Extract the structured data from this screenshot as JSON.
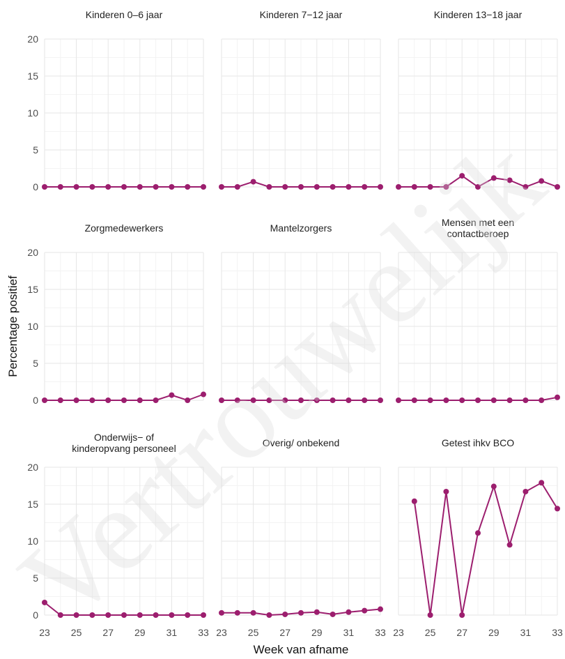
{
  "chart_data": {
    "type": "line",
    "facets": [
      {
        "title_lines": [
          "Kinderen 0–6 jaar"
        ],
        "x": [
          23,
          24,
          25,
          26,
          27,
          28,
          29,
          30,
          31,
          32,
          33
        ],
        "y": [
          0,
          0,
          0,
          0,
          0,
          0,
          0,
          0,
          0,
          0,
          0
        ]
      },
      {
        "title_lines": [
          "Kinderen 7−12 jaar"
        ],
        "x": [
          23,
          24,
          25,
          26,
          27,
          28,
          29,
          30,
          31,
          32,
          33
        ],
        "y": [
          0,
          0,
          0.7,
          0,
          0,
          0,
          0,
          0,
          0,
          0,
          0
        ]
      },
      {
        "title_lines": [
          "Kinderen 13−18 jaar"
        ],
        "x": [
          23,
          24,
          25,
          26,
          27,
          28,
          29,
          30,
          31,
          32,
          33
        ],
        "y": [
          0,
          0,
          0,
          0,
          1.5,
          0,
          1.2,
          0.9,
          0,
          0.8,
          0
        ]
      },
      {
        "title_lines": [
          "Zorgmedewerkers"
        ],
        "x": [
          23,
          24,
          25,
          26,
          27,
          28,
          29,
          30,
          31,
          32,
          33
        ],
        "y": [
          0,
          0,
          0,
          0,
          0,
          0,
          0,
          0,
          0.7,
          0,
          0.8
        ]
      },
      {
        "title_lines": [
          "Mantelzorgers"
        ],
        "x": [
          23,
          24,
          25,
          26,
          27,
          28,
          29,
          30,
          31,
          32,
          33
        ],
        "y": [
          0,
          0,
          0,
          0,
          0,
          0,
          0,
          0,
          0,
          0,
          0
        ]
      },
      {
        "title_lines": [
          "Mensen met een",
          "contactberoep"
        ],
        "x": [
          23,
          24,
          25,
          26,
          27,
          28,
          29,
          30,
          31,
          32,
          33
        ],
        "y": [
          0,
          0,
          0,
          0,
          0,
          0,
          0,
          0,
          0,
          0,
          0.4
        ]
      },
      {
        "title_lines": [
          "Onderwijs− of",
          "kinderopvang personeel"
        ],
        "x": [
          23,
          24,
          25,
          26,
          27,
          28,
          29,
          30,
          31,
          32,
          33
        ],
        "y": [
          1.7,
          0,
          0,
          0,
          0,
          0,
          0,
          0,
          0,
          0,
          0
        ]
      },
      {
        "title_lines": [
          "Overig/ onbekend"
        ],
        "x": [
          23,
          24,
          25,
          26,
          27,
          28,
          29,
          30,
          31,
          32,
          33
        ],
        "y": [
          0.3,
          0.3,
          0.3,
          0,
          0.1,
          0.3,
          0.4,
          0.1,
          0.4,
          0.6,
          0.8
        ]
      },
      {
        "title_lines": [
          "Getest ihkv BCO"
        ],
        "x": [
          24,
          25,
          26,
          27,
          28,
          29,
          30,
          31,
          32,
          33
        ],
        "y": [
          15.4,
          0,
          16.7,
          0,
          11.1,
          17.4,
          9.5,
          16.7,
          17.9,
          14.4
        ]
      }
    ],
    "xlabel": "Week van afname",
    "ylabel": "Percentage positief",
    "xlim": [
      23,
      33
    ],
    "ylim": [
      0,
      20
    ],
    "x_ticks": [
      23,
      25,
      27,
      29,
      31,
      33
    ],
    "y_ticks": [
      0,
      5,
      10,
      15,
      20
    ],
    "grid": true,
    "series_color": "#9c1e6e",
    "watermark": "Vertrouwelijk"
  }
}
